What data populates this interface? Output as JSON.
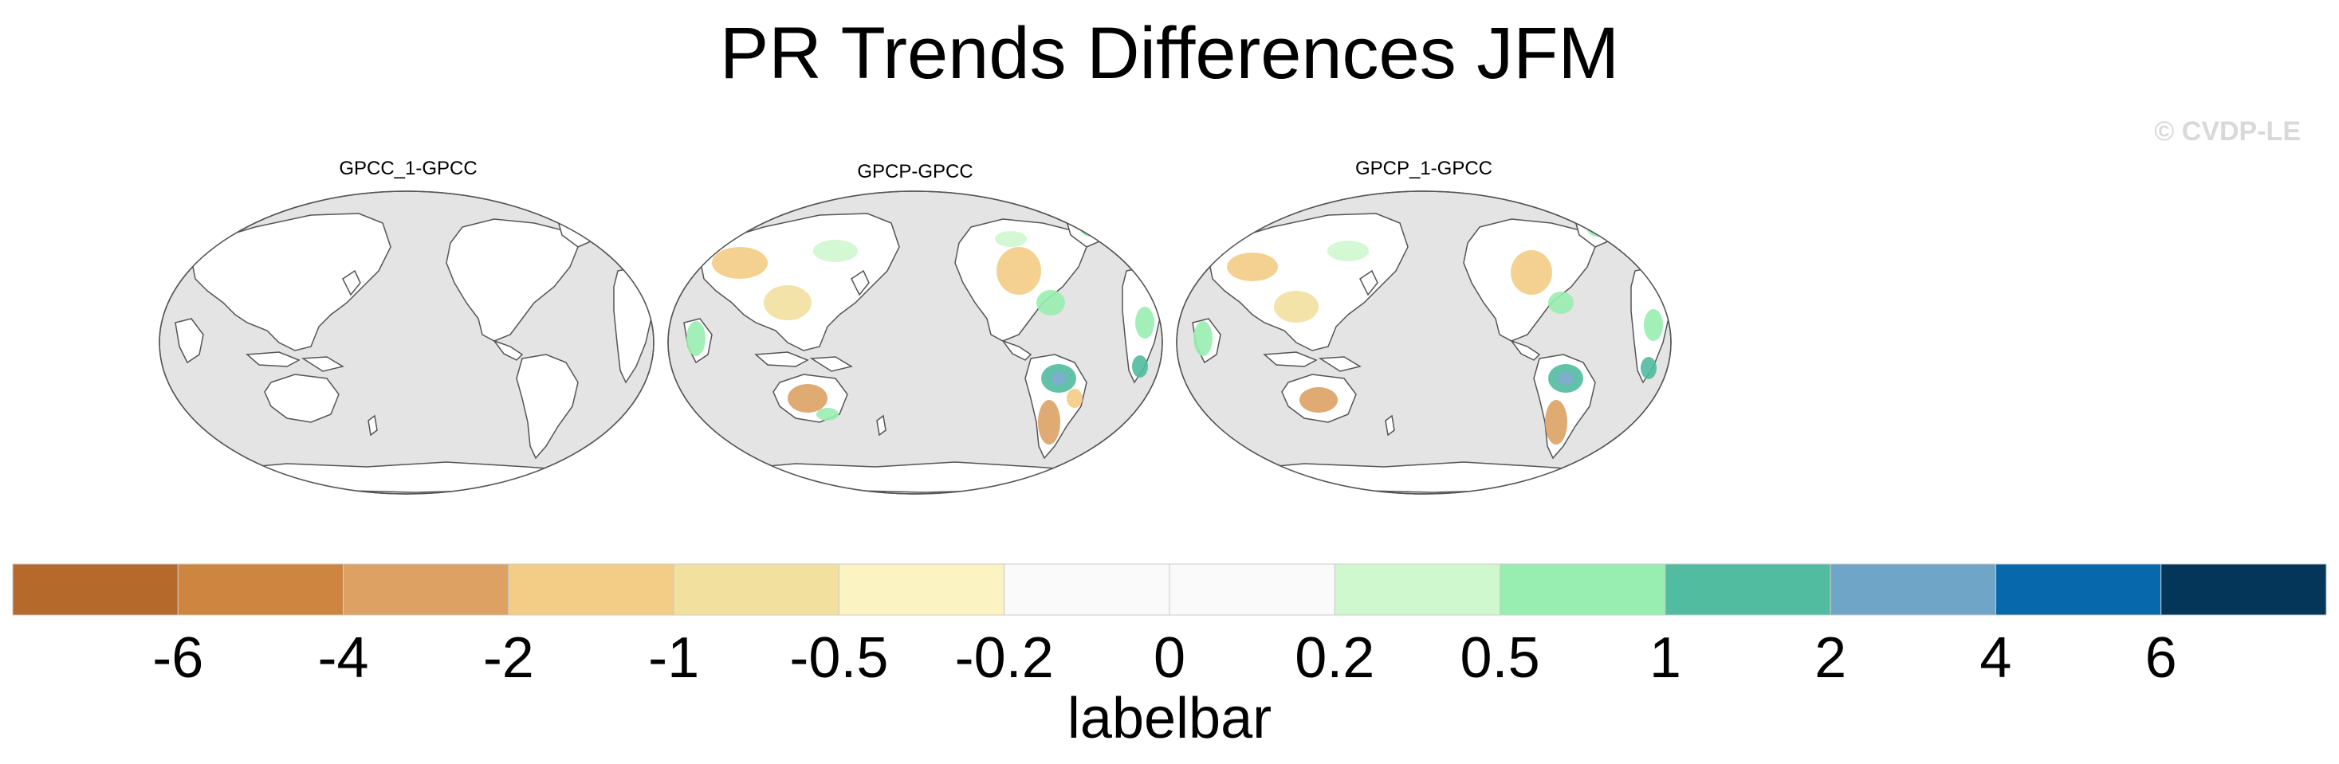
{
  "title": "PR Trends Differences JFM",
  "watermark": "© CVDP-LE",
  "panels": [
    {
      "title": "GPCC_1-GPCC"
    },
    {
      "title": "GPCP-GPCC"
    },
    {
      "title": "GPCP_1-GPCC"
    }
  ],
  "labelbar": {
    "title": "labelbar",
    "ticks": [
      "-6",
      "-4",
      "-2",
      "-1",
      "-0.5",
      "-0.2",
      "0",
      "0.2",
      "0.5",
      "1",
      "2",
      "4",
      "6"
    ],
    "colors": [
      "#b5692b",
      "#cd853f",
      "#dda263",
      "#f3cd85",
      "#f2e09f",
      "#fbf4c2",
      "#fafafa",
      "#fafafa",
      "#cff8cf",
      "#98eeb0",
      "#52bca0",
      "#6fa6c7",
      "#0868ac",
      "#04365a"
    ]
  },
  "map_colors": {
    "ocean": "#e4e4e4",
    "land": "#ffffff",
    "coast": "#555555"
  }
}
